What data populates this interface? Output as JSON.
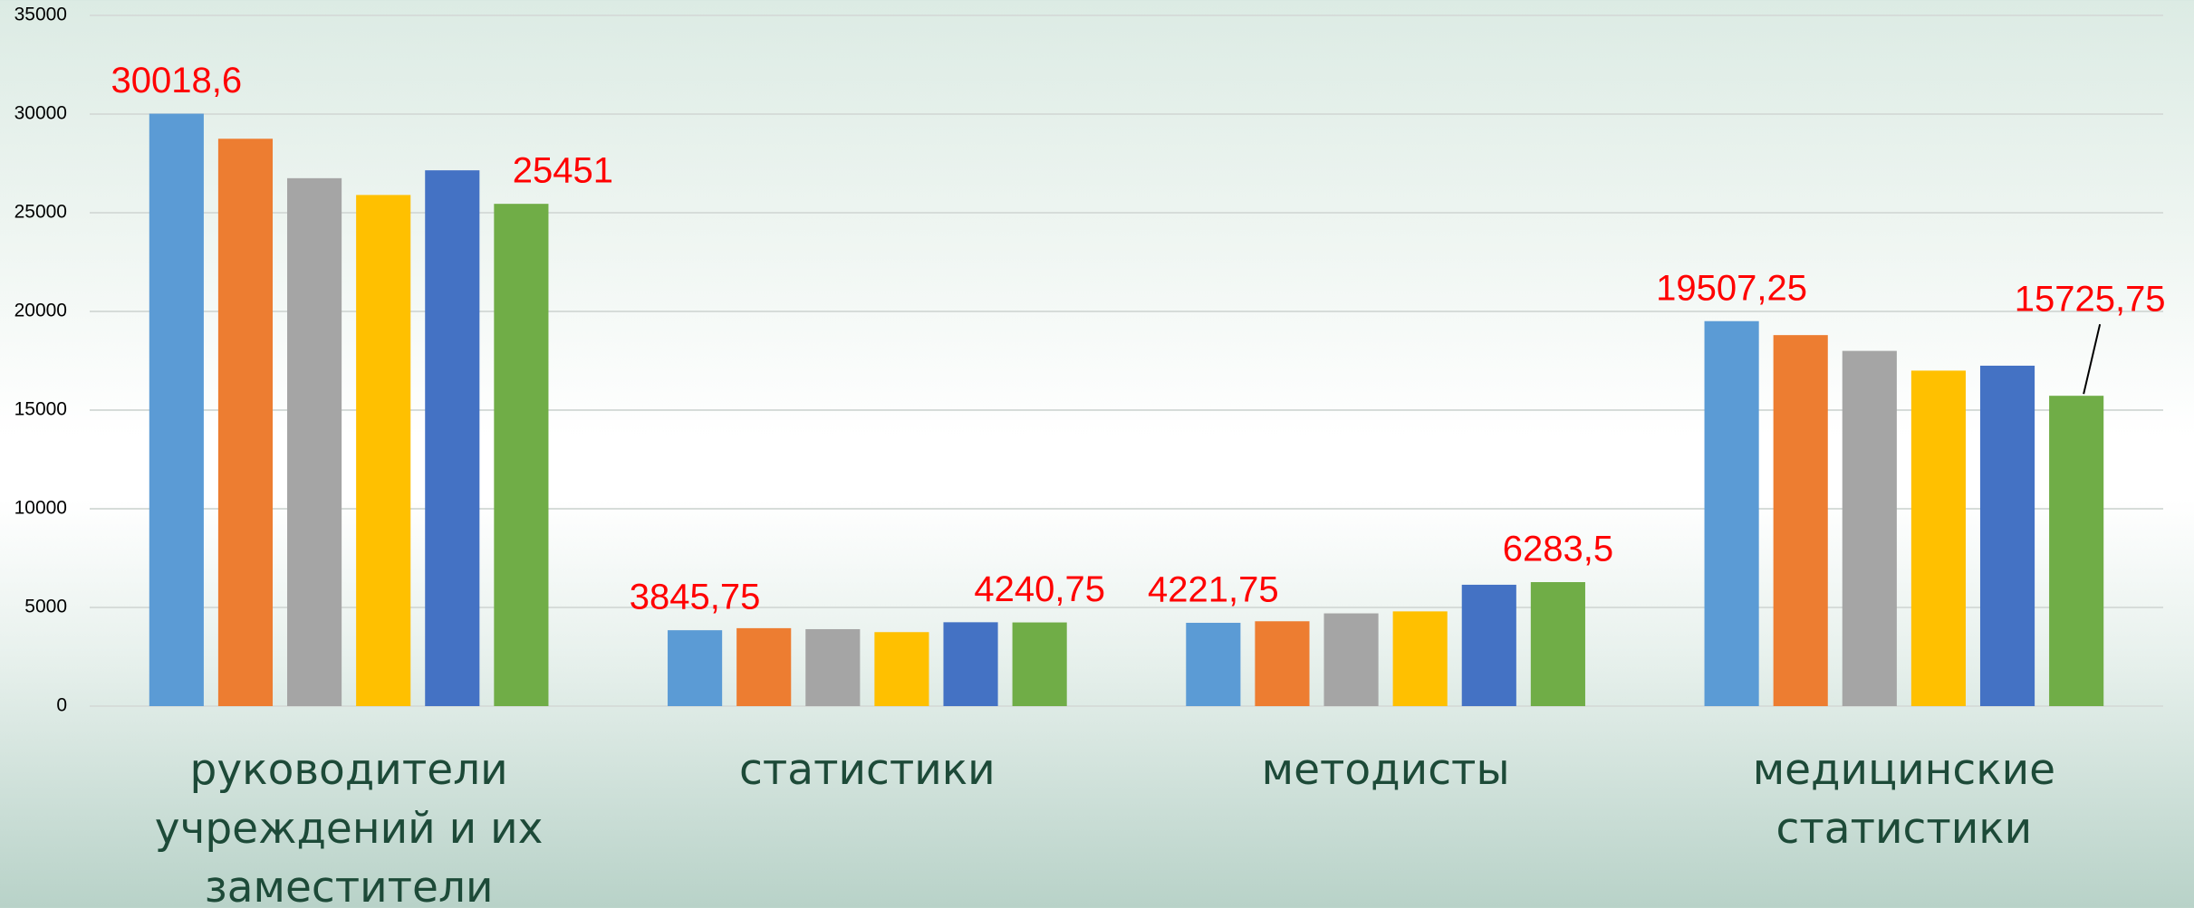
{
  "chart_data": {
    "type": "bar",
    "categories": [
      "руководители учреждений и их заместители",
      "статистики",
      "методисты",
      "медицинские статистики"
    ],
    "series": [
      {
        "color": "#5b9bd5",
        "values": [
          30018.6,
          3845.75,
          4221.75,
          19507.25
        ],
        "value_labels": [
          "30018,6",
          "3845,75",
          "4221,75",
          "19507,25"
        ]
      },
      {
        "color": "#ed7d31",
        "values": [
          28750,
          3950,
          4300,
          18800
        ]
      },
      {
        "color": "#a5a5a5",
        "values": [
          26750,
          3900,
          4700,
          18000
        ]
      },
      {
        "color": "#ffc000",
        "values": [
          25900,
          3750,
          4800,
          17000
        ]
      },
      {
        "color": "#4472c4",
        "values": [
          27150,
          4250,
          6150,
          17250
        ]
      },
      {
        "color": "#70ad47",
        "values": [
          25451,
          4240.75,
          6283.5,
          15725.75
        ],
        "value_labels": [
          "25451",
          "4240,75",
          "6283,5",
          "15725,75"
        ]
      }
    ],
    "ylim": [
      0,
      35000
    ],
    "yticks": [
      0,
      5000,
      10000,
      15000,
      20000,
      25000,
      30000,
      35000
    ],
    "grid": true
  }
}
